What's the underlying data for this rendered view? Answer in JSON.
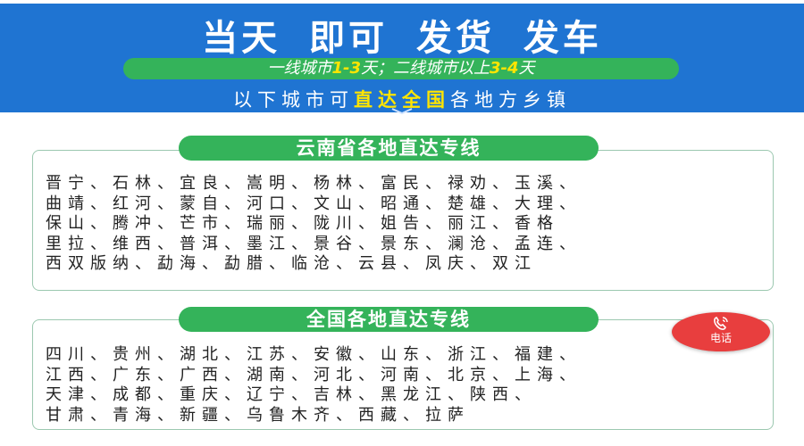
{
  "banner": {
    "title": "当天 即可 发货 发车",
    "tagline": {
      "p1": "一线城市",
      "h1": "1-3",
      "p2": "天；二线城市以上",
      "h2": "3-4",
      "p3": "天"
    },
    "subtitle": {
      "p1": "以下城市可",
      "h": "直达全国",
      "p2": "各地方乡镇"
    },
    "colors": {
      "blue": "#1f74d2",
      "green": "#34b35a",
      "highlight": "#ffe500"
    }
  },
  "yunnan": {
    "title": "云南省各地直达专线",
    "rows": [
      "晋宁、石林、宜良、嵩明、杨林、富民、禄劝、玉溪、",
      "曲靖、红河、蒙自、河口、文山、昭通、楚雄、大理、",
      "保山、腾冲、芒市、瑞丽、陇川、姐告、丽江、香格",
      "里拉、维西、普洱、墨江、景谷、景东、澜沧、孟连、",
      "西双版纳、勐海、勐腊、临沧、云县、凤庆、双江"
    ]
  },
  "national": {
    "title": "全国各地直达专线",
    "rows": [
      "四川、贵州、湖北、江苏、安徽、山东、浙江、福建、",
      "江西、广东、广西、湖南、河北、河南、北京、上海、",
      "天津、成都、重庆、辽宁、吉林、黑龙江、陕西、",
      "甘肃、青海、新疆、乌鲁木齐、西藏、拉萨"
    ]
  },
  "phone_button": {
    "label": "电话",
    "icon": "phone-icon",
    "color": "#e83e3e"
  }
}
